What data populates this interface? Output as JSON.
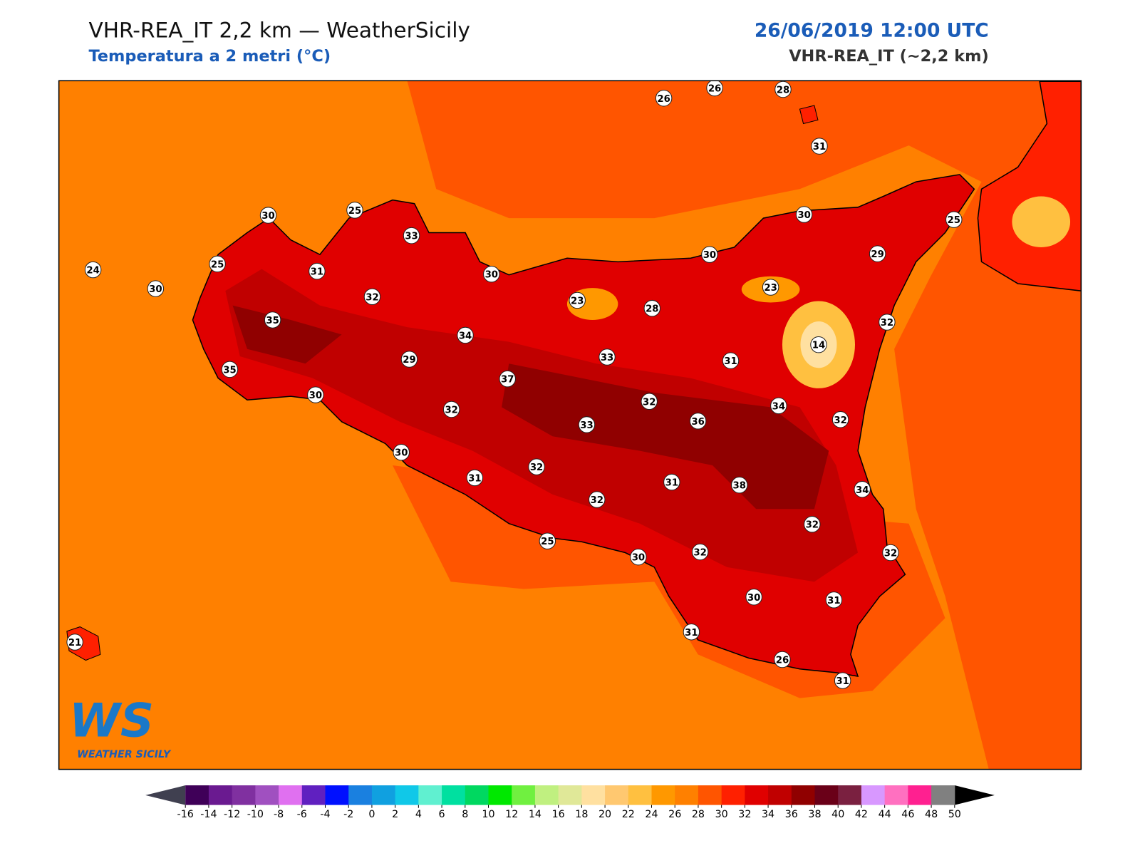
{
  "header": {
    "title": "VHR-REA_IT 2,2 km — WeatherSicily",
    "subtitle": "Temperatura a 2 metri (°C)",
    "datetime": "26/06/2019 12:00 UTC",
    "model": "VHR-REA_IT (~2,2 km)"
  },
  "map": {
    "sea_color": "#ff8000",
    "land_color": "#e00000",
    "stations": [
      26,
      26,
      28,
      31,
      30,
      25,
      33,
      24,
      25,
      31,
      30,
      32,
      30,
      23,
      28,
      30,
      30,
      25,
      29,
      23,
      32,
      14,
      35,
      34,
      29,
      33,
      31,
      35,
      30,
      37,
      32,
      34,
      36,
      32,
      32,
      33,
      30,
      31,
      32,
      31,
      38,
      34,
      32,
      32,
      25,
      30,
      32,
      32,
      30,
      31,
      31,
      21,
      26,
      31
    ]
  },
  "logo": {
    "mark": "WS",
    "name": "WEATHER SICILY"
  },
  "colorbar": {
    "ticks": [
      -16,
      -14,
      -12,
      -10,
      -8,
      -6,
      -4,
      -2,
      0,
      2,
      4,
      6,
      8,
      10,
      12,
      14,
      16,
      18,
      20,
      22,
      24,
      26,
      28,
      30,
      32,
      34,
      36,
      38,
      40,
      42,
      44,
      46,
      48,
      50
    ],
    "colors": [
      "#3f0058",
      "#6a1a90",
      "#8030a0",
      "#a050c0",
      "#e070f0",
      "#6020c0",
      "#0010ff",
      "#1a80e0",
      "#10a0e0",
      "#10c8e8",
      "#60f0d0",
      "#00e0a0",
      "#00d860",
      "#00e800",
      "#70f040",
      "#c0f080",
      "#e0e898",
      "#ffe0a0",
      "#ffc870",
      "#ffc040",
      "#ff9800",
      "#ff8000",
      "#ff5500",
      "#ff2000",
      "#e00000",
      "#c00000",
      "#900000",
      "#6a0018",
      "#7a2040",
      "#d898ff",
      "#ff70c0",
      "#ff2090",
      "#808080",
      "#404040"
    ],
    "under_color": "#404050",
    "over_color": "#000000"
  }
}
